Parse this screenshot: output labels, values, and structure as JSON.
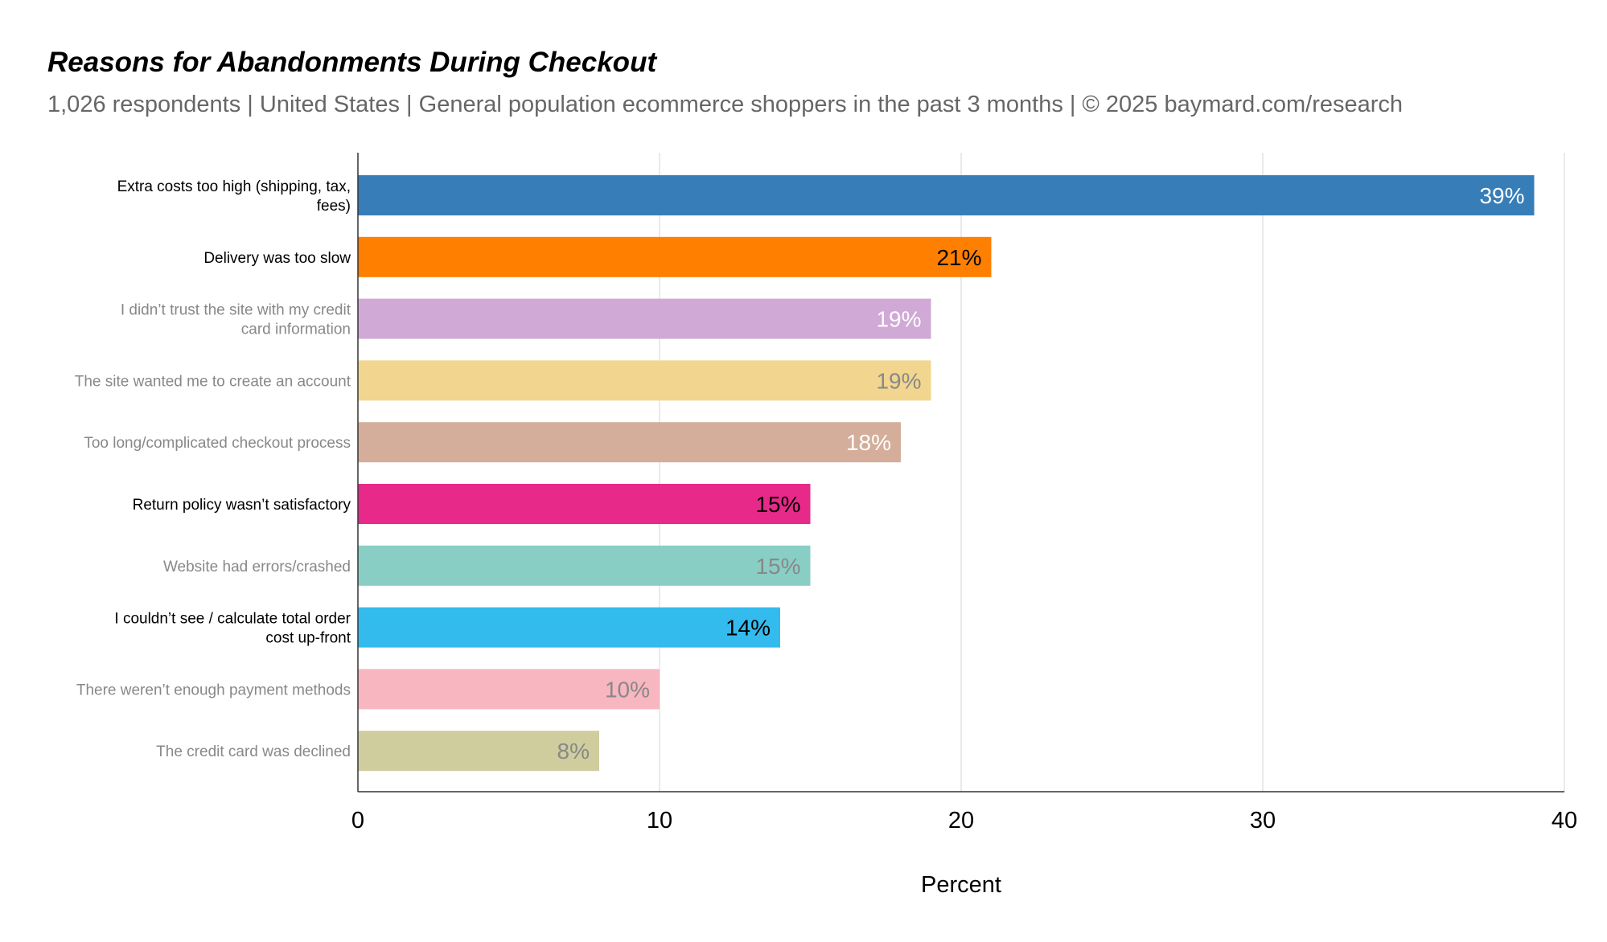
{
  "chart_data": {
    "type": "bar",
    "orientation": "horizontal",
    "title": "Reasons for Abandonments During Checkout",
    "subtitle": "1,026 respondents  |  United States  |  General population ecommerce shoppers in the past 3 months | © 2025 baymard.com/research",
    "xlabel": "Percent",
    "ylabel": "",
    "xlim": [
      0,
      40
    ],
    "x_ticks": [
      0,
      10,
      20,
      30,
      40
    ],
    "grid": true,
    "categories": [
      "Extra costs too high (shipping, tax, fees)",
      "Delivery was too slow",
      "I didn’t trust the site with my credit card information",
      "The site wanted me to create an account",
      "Too long/complicated checkout process",
      "Return policy wasn’t satisfactory",
      "Website had errors/crashed",
      "I couldn’t see / calculate total order cost up-front",
      "There weren’t enough payment methods",
      "The credit card was declined"
    ],
    "values": [
      39,
      21,
      19,
      19,
      18,
      15,
      15,
      14,
      10,
      8
    ],
    "data_labels": [
      "39%",
      "21%",
      "19%",
      "19%",
      "18%",
      "15%",
      "15%",
      "14%",
      "10%",
      "8%"
    ],
    "bar_colors": [
      "#377eb8",
      "#ff7f00",
      "#d0a9d6",
      "#f2d68f",
      "#d4ae9a",
      "#e7298a",
      "#89cec4",
      "#33bbee",
      "#f7b6c0",
      "#cfcd9d"
    ],
    "category_label_colors": [
      "#000000",
      "#000000",
      "#888888",
      "#888888",
      "#888888",
      "#000000",
      "#888888",
      "#000000",
      "#888888",
      "#888888"
    ],
    "value_label_colors": [
      "#ffffff",
      "#000000",
      "#ffffff",
      "#888888",
      "#ffffff",
      "#000000",
      "#888888",
      "#000000",
      "#888888",
      "#888888"
    ]
  }
}
